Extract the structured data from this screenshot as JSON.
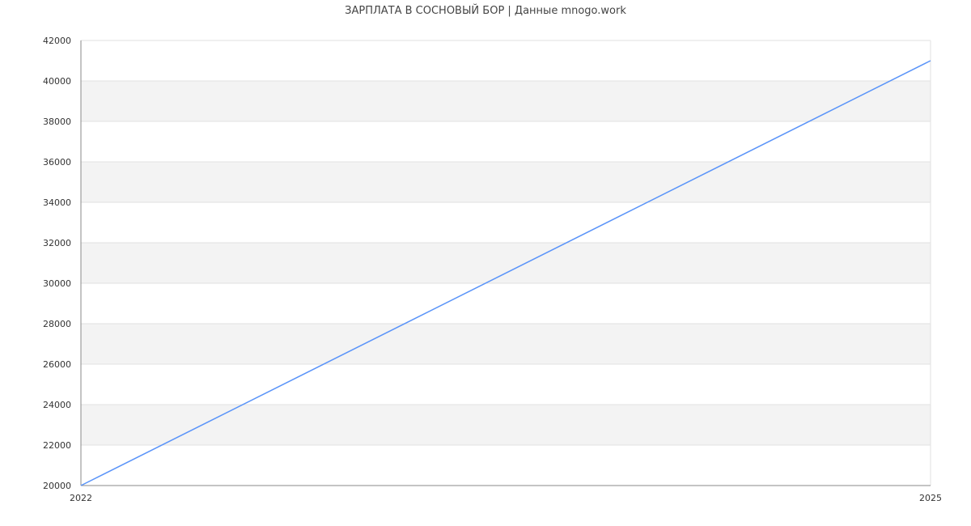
{
  "chart_data": {
    "type": "line",
    "title": "ЗАРПЛАТА В СОСНОВЫЙ БОР | Данные mnogo.work",
    "xlabel": "",
    "ylabel": "",
    "x": [
      2022,
      2025
    ],
    "x_tick_labels": [
      "2022",
      "2025"
    ],
    "xlim": [
      2022,
      2025
    ],
    "ylim": [
      20000,
      42000
    ],
    "y_ticks": [
      20000,
      22000,
      24000,
      26000,
      28000,
      30000,
      32000,
      34000,
      36000,
      38000,
      40000,
      42000
    ],
    "grid": true,
    "banded_background": true,
    "series": [
      {
        "values": [
          20000,
          41000
        ],
        "color": "#5b95f9"
      }
    ]
  }
}
